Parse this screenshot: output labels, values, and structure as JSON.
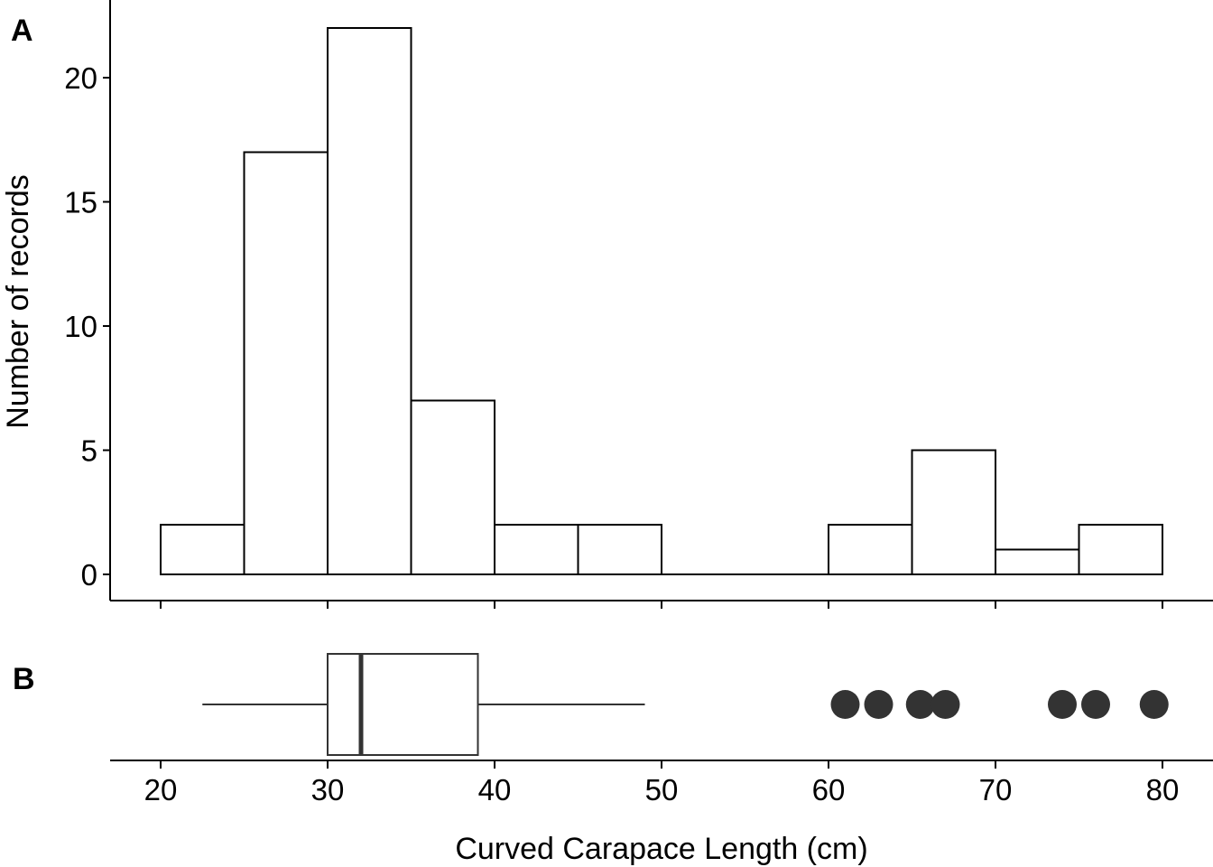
{
  "chart_data": [
    {
      "panel": "A",
      "type": "histogram",
      "bin_edges": [
        20,
        25,
        30,
        35,
        40,
        45,
        50,
        55,
        60,
        65,
        70,
        75,
        80
      ],
      "values": [
        2,
        17,
        22,
        7,
        2,
        2,
        0,
        0,
        2,
        5,
        1,
        2
      ],
      "ylabel": "Number of records",
      "ylim": [
        0,
        23
      ],
      "yticks": [
        0,
        5,
        10,
        15,
        20
      ],
      "xlim": [
        17,
        84
      ],
      "xticks": [
        20,
        30,
        40,
        50,
        60,
        70,
        80
      ],
      "bar_fill": "#ffffff",
      "bar_stroke": "#000000"
    },
    {
      "panel": "B",
      "type": "boxplot",
      "whisker_low": 22.5,
      "q1": 30,
      "median": 32,
      "q3": 39,
      "whisker_high": 49,
      "outliers": [
        61,
        63,
        65.5,
        67,
        74,
        76,
        79.5
      ],
      "xlabel": "Curved Carapace Length (cm)",
      "xlim": [
        17,
        84
      ],
      "xticks": [
        20,
        30,
        40,
        50,
        60,
        70,
        80
      ],
      "box_stroke": "#333333",
      "outlier_color": "#333333"
    }
  ],
  "labels": {
    "panel_a": "A",
    "panel_b": "B",
    "ylabel": "Number of records",
    "xlabel": "Curved Carapace Length (cm)"
  }
}
